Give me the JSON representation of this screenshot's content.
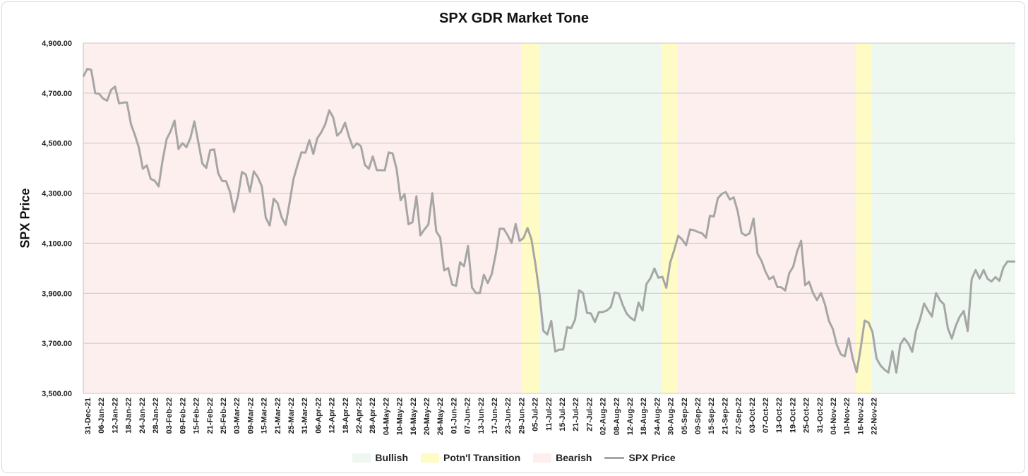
{
  "chart_data": {
    "type": "line",
    "title": "SPX GDR Market Tone",
    "xlabel": "",
    "ylabel": "SPX Price",
    "ylim": [
      3500,
      4900
    ],
    "yticks": [
      3500,
      3700,
      3900,
      4100,
      4300,
      4500,
      4700,
      4900
    ],
    "ytick_labels": [
      "3,500.00",
      "3,700.00",
      "3,900.00",
      "4,100.00",
      "4,300.00",
      "4,500.00",
      "4,700.00",
      "4,900.00"
    ],
    "x_tick_labels": [
      "31-Dec-21",
      "06-Jan-22",
      "12-Jan-22",
      "18-Jan-22",
      "24-Jan-22",
      "28-Jan-22",
      "03-Feb-22",
      "09-Feb-22",
      "15-Feb-22",
      "21-Feb-22",
      "25-Feb-22",
      "03-Mar-22",
      "09-Mar-22",
      "15-Mar-22",
      "21-Mar-22",
      "25-Mar-22",
      "31-Mar-22",
      "06-Apr-22",
      "12-Apr-22",
      "18-Apr-22",
      "22-Apr-22",
      "28-Apr-22",
      "04-May-22",
      "10-May-22",
      "16-May-22",
      "20-May-22",
      "26-May-22",
      "01-Jun-22",
      "07-Jun-22",
      "13-Jun-22",
      "17-Jun-22",
      "23-Jun-22",
      "29-Jun-22",
      "05-Jul-22",
      "11-Jul-22",
      "15-Jul-22",
      "21-Jul-22",
      "27-Jul-22",
      "02-Aug-22",
      "08-Aug-22",
      "12-Aug-22",
      "18-Aug-22",
      "24-Aug-22",
      "30-Aug-22",
      "05-Sep-22",
      "09-Sep-22",
      "15-Sep-22",
      "21-Sep-22",
      "27-Sep-22",
      "03-Oct-22",
      "07-Oct-22",
      "13-Oct-22",
      "19-Oct-22",
      "25-Oct-22",
      "31-Oct-22",
      "04-Nov-22",
      "10-Nov-22",
      "16-Nov-22",
      "22-Nov-22"
    ],
    "series": [
      {
        "name": "SPX Price",
        "color": "#a6a6a6",
        "values": [
          4766,
          4797,
          4793,
          4700,
          4697,
          4678,
          4670,
          4713,
          4726,
          4659,
          4662,
          4663,
          4577,
          4533,
          4483,
          4398,
          4411,
          4357,
          4350,
          4327,
          4432,
          4516,
          4547,
          4590,
          4477,
          4500,
          4484,
          4521,
          4587,
          4504,
          4419,
          4401,
          4472,
          4475,
          4380,
          4349,
          4348,
          4305,
          4225,
          4289,
          4385,
          4374,
          4306,
          4387,
          4364,
          4328,
          4202,
          4171,
          4278,
          4260,
          4204,
          4173,
          4262,
          4357,
          4412,
          4463,
          4462,
          4512,
          4457,
          4520,
          4543,
          4575,
          4631,
          4603,
          4530,
          4546,
          4582,
          4526,
          4481,
          4500,
          4488,
          4413,
          4398,
          4447,
          4392,
          4392,
          4391,
          4463,
          4459,
          4397,
          4272,
          4296,
          4176,
          4184,
          4288,
          4132,
          4155,
          4175,
          4300,
          4147,
          4123,
          3991,
          4001,
          3935,
          3930,
          4024,
          4008,
          4089,
          3923,
          3901,
          3901,
          3974,
          3941,
          3978,
          4058,
          4158,
          4158,
          4132,
          4101,
          4177,
          4109,
          4121,
          4161,
          4116,
          4018,
          3901,
          3750,
          3735,
          3790,
          3667,
          3675,
          3675,
          3765,
          3760,
          3795,
          3912,
          3901,
          3822,
          3819,
          3785,
          3825,
          3825,
          3831,
          3845,
          3903,
          3899,
          3854,
          3819,
          3802,
          3791,
          3863,
          3831,
          3937,
          3960,
          3999,
          3962,
          3966,
          3922,
          4024,
          4073,
          4130,
          4115,
          4092,
          4155,
          4152,
          4145,
          4140,
          4122,
          4210,
          4207,
          4280,
          4297,
          4305,
          4275,
          4283,
          4228,
          4141,
          4131,
          4140,
          4199,
          4058,
          4030,
          3987,
          3956,
          3967,
          3925,
          3924,
          3911,
          3980,
          4006,
          4068,
          4110,
          3932,
          3946,
          3901,
          3873,
          3901,
          3856,
          3790,
          3757,
          3694,
          3656,
          3648,
          3720,
          3640,
          3585,
          3678,
          3791,
          3783,
          3745,
          3640,
          3612,
          3595,
          3583,
          3669,
          3583,
          3696,
          3720,
          3700,
          3666,
          3752,
          3797,
          3859,
          3831,
          3807,
          3901,
          3872,
          3856,
          3760,
          3719,
          3770,
          3807,
          3829,
          3749,
          3956,
          3993,
          3959,
          3993,
          3958,
          3947,
          3965,
          3950,
          4003,
          4027,
          4027,
          4027
        ]
      }
    ],
    "tone_periods": [
      {
        "tone": "Bearish",
        "start_label": "31-Dec-21",
        "end_label": "29-Jun-22"
      },
      {
        "tone": "Potn'l Transition",
        "start_label": "29-Jun-22",
        "end_label": "07-Jul-22"
      },
      {
        "tone": "Bullish",
        "start_label": "07-Jul-22",
        "end_label": "26-Aug-22"
      },
      {
        "tone": "Potn'l Transition",
        "start_label": "26-Aug-22",
        "end_label": "02-Sep-22"
      },
      {
        "tone": "Bearish",
        "start_label": "02-Sep-22",
        "end_label": "14-Nov-22"
      },
      {
        "tone": "Potn'l Transition",
        "start_label": "14-Nov-22",
        "end_label": "21-Nov-22"
      },
      {
        "tone": "Bullish",
        "start_label": "21-Nov-22",
        "end_label": "30-Nov-22"
      }
    ],
    "legend": [
      {
        "label": "Bullish",
        "color": "#eef8f1",
        "kind": "area"
      },
      {
        "label": "Potn'l Transition",
        "color": "#fefcc4",
        "kind": "area"
      },
      {
        "label": "Bearish",
        "color": "#fcefee",
        "kind": "area"
      },
      {
        "label": "SPX Price",
        "color": "#a6a6a6",
        "kind": "line"
      }
    ],
    "legend_position": "bottom-center",
    "grid": true,
    "colors": {
      "bullish": "#eef8f1",
      "transition": "#fefcc4",
      "bearish": "#fcefee",
      "grid": "#c8c8c8",
      "line": "#a6a6a6"
    }
  }
}
